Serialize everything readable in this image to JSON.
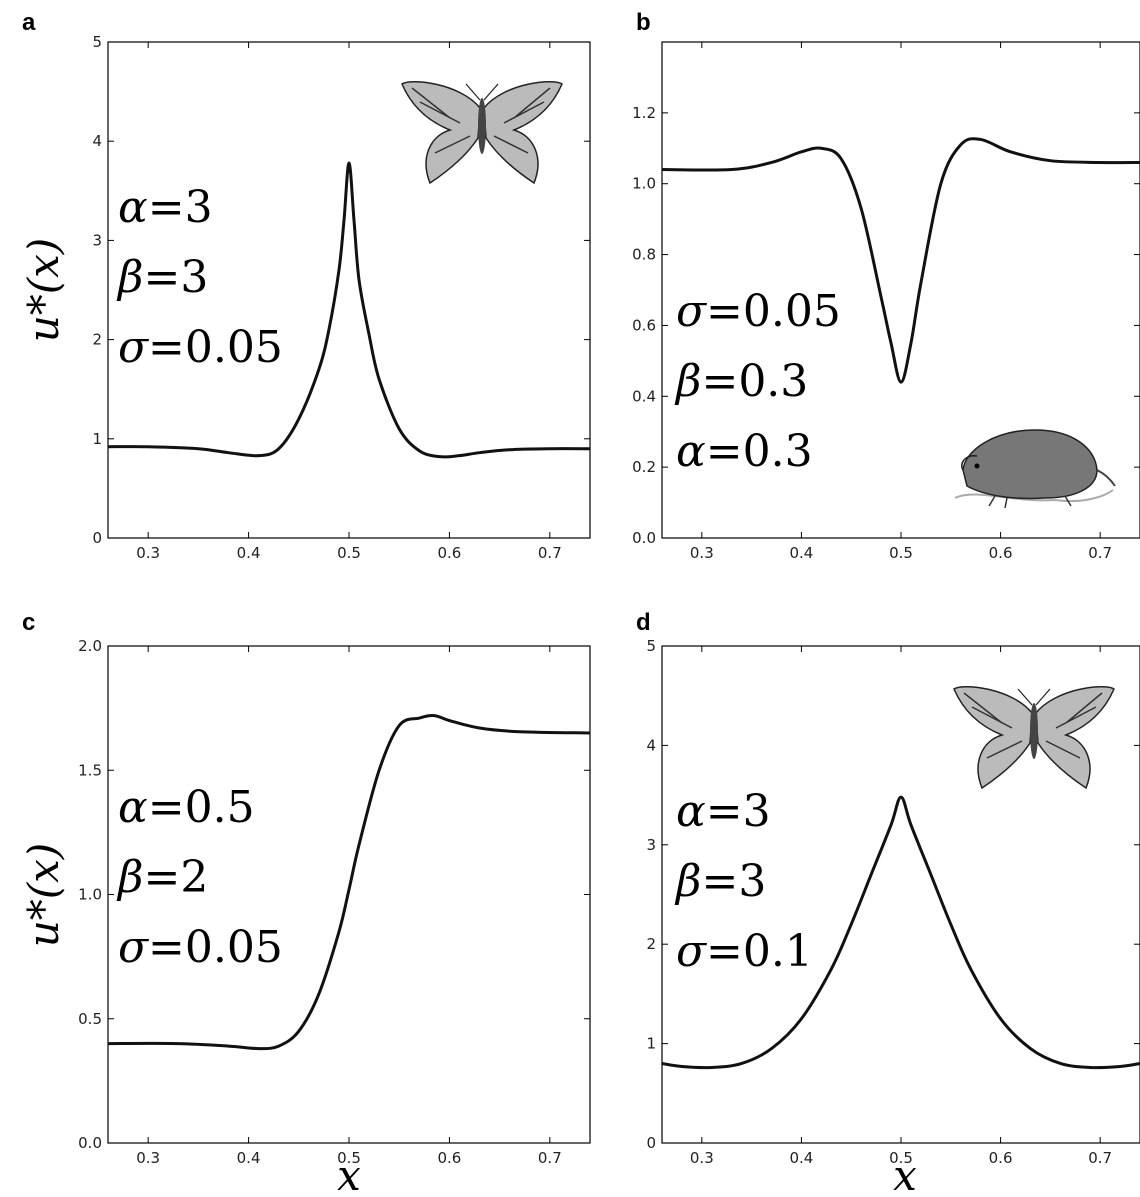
{
  "chart_data": [
    {
      "type": "line",
      "panel": "a",
      "ylabel": "u*(x)",
      "xlabel": "",
      "xlim": [
        0.26,
        0.74
      ],
      "ylim": [
        0,
        5
      ],
      "xticks": [
        "0.3",
        "0.4",
        "0.5",
        "0.6",
        "0.7"
      ],
      "yticks": [
        "0",
        "1",
        "2",
        "3",
        "4",
        "5"
      ],
      "params": [
        {
          "sym": "α",
          "val": "3"
        },
        {
          "sym": "β",
          "val": "3"
        },
        {
          "sym": "σ",
          "val": "0.05"
        }
      ],
      "illustration": "butterfly",
      "series": [
        {
          "x": [
            0.26,
            0.3,
            0.35,
            0.38,
            0.41,
            0.43,
            0.45,
            0.47,
            0.48,
            0.49,
            0.495,
            0.5,
            0.505,
            0.51,
            0.52,
            0.53,
            0.55,
            0.57,
            0.59,
            0.61,
            0.63,
            0.66,
            0.7,
            0.74
          ],
          "y": [
            0.92,
            0.92,
            0.9,
            0.86,
            0.83,
            0.9,
            1.2,
            1.7,
            2.1,
            2.7,
            3.2,
            3.78,
            3.2,
            2.6,
            2.05,
            1.6,
            1.1,
            0.88,
            0.82,
            0.83,
            0.86,
            0.89,
            0.9,
            0.9
          ]
        }
      ]
    },
    {
      "type": "line",
      "panel": "b",
      "ylabel": "",
      "xlabel": "",
      "xlim": [
        0.26,
        0.74
      ],
      "ylim": [
        0,
        1.4
      ],
      "xticks": [
        "0.3",
        "0.4",
        "0.5",
        "0.6",
        "0.7"
      ],
      "yticks": [
        "0.0",
        "0.2",
        "0.4",
        "0.6",
        "0.8",
        "1.0",
        "1.2"
      ],
      "params": [
        {
          "sym": "σ",
          "val": "0.05"
        },
        {
          "sym": "β",
          "val": "0.3"
        },
        {
          "sym": "α",
          "val": "0.3"
        }
      ],
      "illustration": "rodent",
      "series": [
        {
          "x": [
            0.26,
            0.33,
            0.37,
            0.4,
            0.42,
            0.44,
            0.46,
            0.48,
            0.49,
            0.5,
            0.51,
            0.52,
            0.54,
            0.56,
            0.58,
            0.61,
            0.65,
            0.7,
            0.74
          ],
          "y": [
            1.04,
            1.04,
            1.06,
            1.09,
            1.1,
            1.07,
            0.93,
            0.68,
            0.55,
            0.44,
            0.55,
            0.72,
            1.0,
            1.11,
            1.125,
            1.09,
            1.065,
            1.06,
            1.06
          ]
        }
      ]
    },
    {
      "type": "line",
      "panel": "c",
      "ylabel": "u*(x)",
      "xlabel": "x",
      "xlim": [
        0.26,
        0.74
      ],
      "ylim": [
        0,
        2.0
      ],
      "xticks": [
        "0.3",
        "0.4",
        "0.5",
        "0.6",
        "0.7"
      ],
      "yticks": [
        "0.0",
        "0.5",
        "1.0",
        "1.5",
        "2.0"
      ],
      "params": [
        {
          "sym": "α",
          "val": "0.5"
        },
        {
          "sym": "β",
          "val": "2"
        },
        {
          "sym": "σ",
          "val": "0.05"
        }
      ],
      "illustration": "",
      "series": [
        {
          "x": [
            0.26,
            0.33,
            0.38,
            0.41,
            0.43,
            0.45,
            0.47,
            0.49,
            0.5,
            0.51,
            0.53,
            0.55,
            0.57,
            0.585,
            0.6,
            0.63,
            0.67,
            0.74
          ],
          "y": [
            0.4,
            0.4,
            0.39,
            0.38,
            0.39,
            0.45,
            0.6,
            0.85,
            1.02,
            1.2,
            1.5,
            1.68,
            1.71,
            1.72,
            1.7,
            1.67,
            1.655,
            1.65
          ]
        }
      ]
    },
    {
      "type": "line",
      "panel": "d",
      "ylabel": "",
      "xlabel": "x",
      "xlim": [
        0.26,
        0.74
      ],
      "ylim": [
        0,
        5
      ],
      "xticks": [
        "0.3",
        "0.4",
        "0.5",
        "0.6",
        "0.7"
      ],
      "yticks": [
        "0",
        "1",
        "2",
        "3",
        "4",
        "5"
      ],
      "params": [
        {
          "sym": "α",
          "val": "3"
        },
        {
          "sym": "β",
          "val": "3"
        },
        {
          "sym": "σ",
          "val": "0.1"
        }
      ],
      "illustration": "butterfly",
      "series": [
        {
          "x": [
            0.26,
            0.28,
            0.31,
            0.34,
            0.37,
            0.4,
            0.43,
            0.45,
            0.47,
            0.49,
            0.5,
            0.51,
            0.53,
            0.55,
            0.57,
            0.6,
            0.63,
            0.66,
            0.69,
            0.72,
            0.74
          ],
          "y": [
            0.8,
            0.77,
            0.76,
            0.8,
            0.95,
            1.25,
            1.75,
            2.2,
            2.7,
            3.2,
            3.48,
            3.2,
            2.7,
            2.2,
            1.75,
            1.25,
            0.95,
            0.8,
            0.76,
            0.77,
            0.8
          ]
        }
      ]
    }
  ]
}
